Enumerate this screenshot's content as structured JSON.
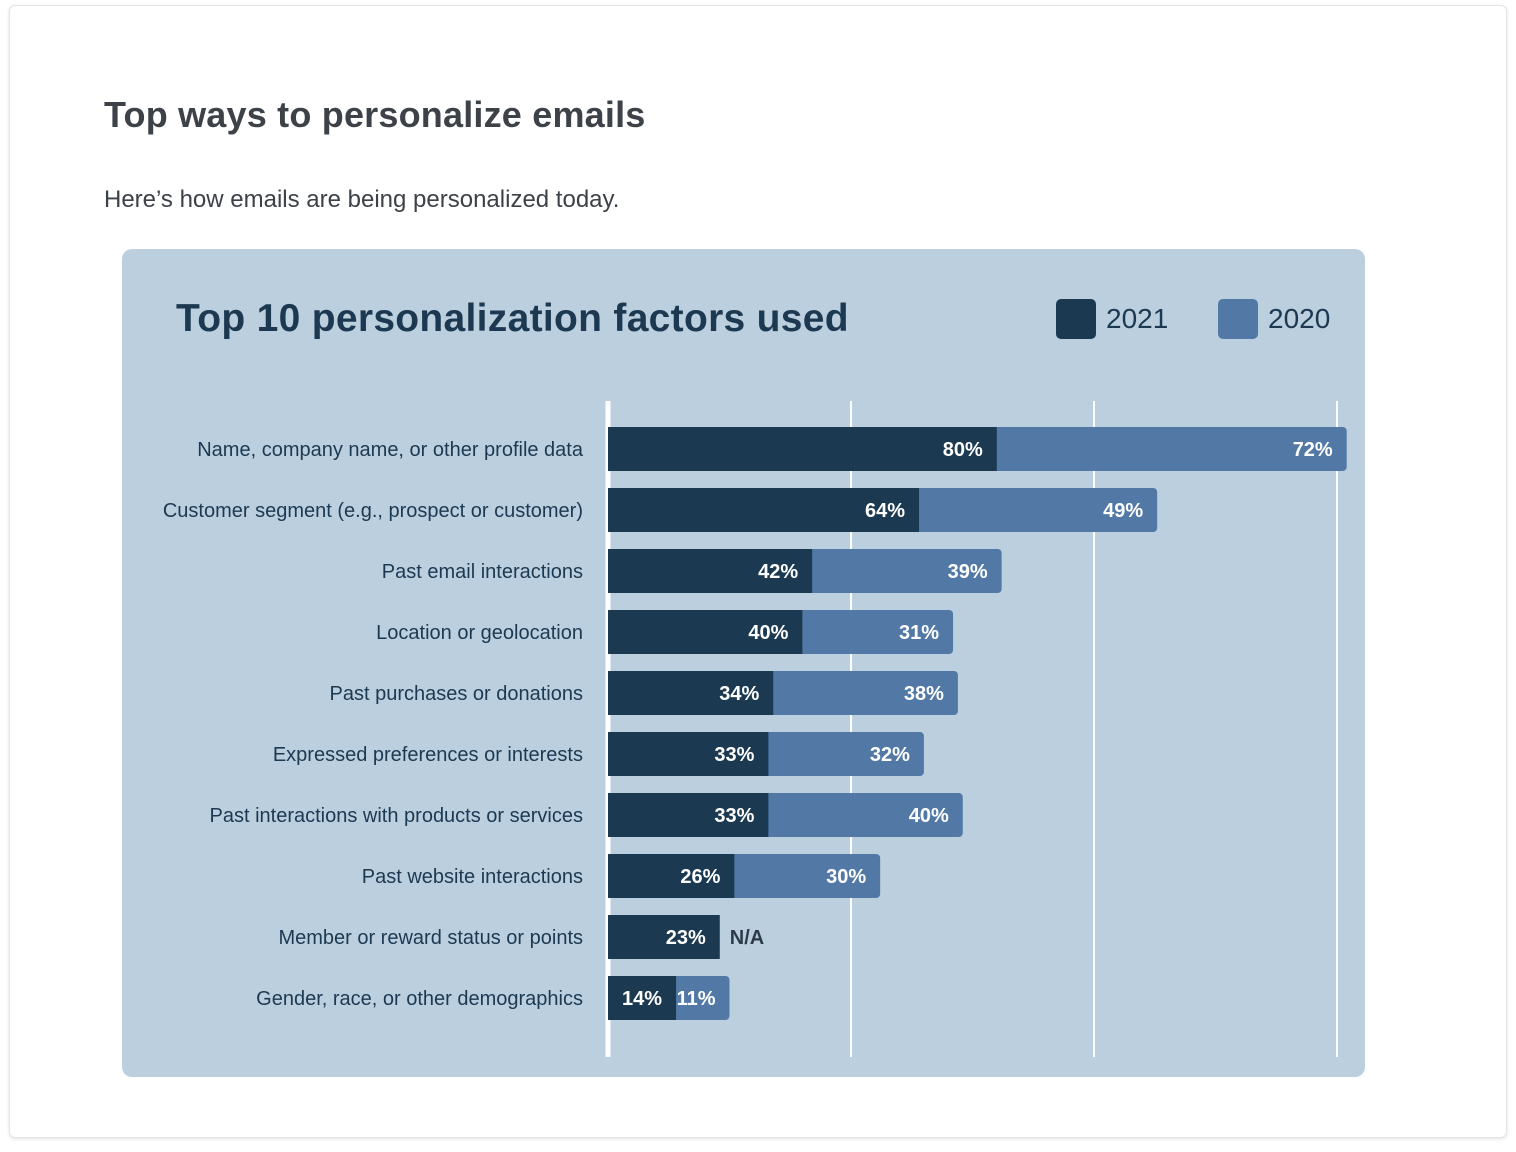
{
  "page": {
    "title": "Top ways to personalize emails",
    "subtitle": "Here’s how emails are being personalized today."
  },
  "chart_data": {
    "type": "bar",
    "orientation": "horizontal",
    "stacked": true,
    "title": "Top 10 personalization factors used",
    "legend_position": "top-right",
    "grid": true,
    "xlim": [
      0,
      150
    ],
    "colors": {
      "2021": "#1b3a52",
      "2020": "#5279a6"
    },
    "categories": [
      "Name, company name, or other profile data",
      "Customer segment (e.g., prospect or customer)",
      "Past email interactions",
      "Location or geolocation",
      "Past purchases or donations",
      "Expressed preferences or interests",
      "Past interactions with products or services",
      "Past website interactions",
      "Member or reward status or points",
      "Gender, race, or other demographics"
    ],
    "series": [
      {
        "name": "2021",
        "values": [
          80,
          64,
          42,
          40,
          34,
          33,
          33,
          26,
          23,
          14
        ],
        "labels": [
          "80%",
          "64%",
          "42%",
          "40%",
          "34%",
          "33%",
          "33%",
          "26%",
          "23%",
          "14%"
        ]
      },
      {
        "name": "2020",
        "values": [
          72,
          49,
          39,
          31,
          38,
          32,
          40,
          30,
          null,
          11
        ],
        "labels": [
          "72%",
          "49%",
          "39%",
          "31%",
          "38%",
          "32%",
          "40%",
          "30%",
          "N/A",
          "11%"
        ]
      }
    ]
  }
}
